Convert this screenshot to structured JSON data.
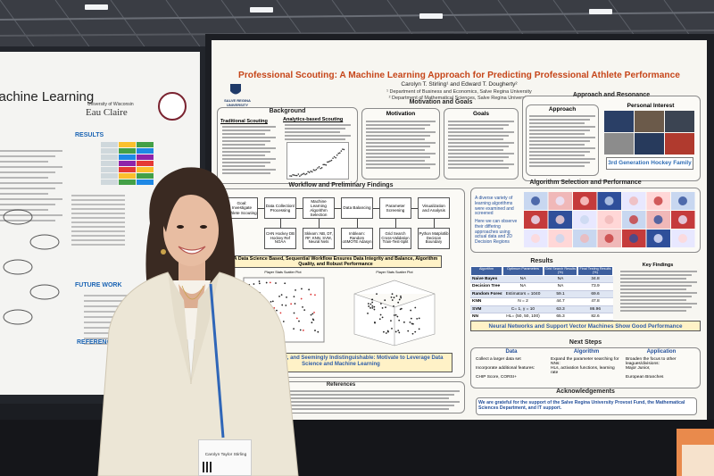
{
  "left_poster": {
    "title": "Machine Learning",
    "university": "University of Wisconsin",
    "campus": "Eau Claire",
    "results": "RESULTS",
    "future_work": "FUTURE WORK",
    "references": "REFERENCE"
  },
  "poster": {
    "title": "Professional Scouting: A Machine Learning Approach for Predicting Professional Athlete Performance",
    "authors": "Carolyn T. Stirling¹ and Edward T. Dougherty²",
    "affiliations": [
      "¹ Department of Business and Economics, Salve Regina University",
      "² Department of Mathematical Sciences, Salve Regina University"
    ],
    "logo": "SALVE REGINA UNIVERSITY",
    "background": {
      "heading": "Background",
      "traditional": "Traditional Scouting",
      "analytics": "Analytics-based Scouting"
    },
    "motivation_goals": {
      "heading": "Motivation and Goals",
      "motivation": "Motivation",
      "goals": "Goals"
    },
    "approach": {
      "heading": "Approach and Resonance",
      "approach": "Approach",
      "personal": "Personal Interest",
      "banner": "3rd Generation Hockey Family"
    },
    "workflow": {
      "heading": "Workflow and Preliminary Findings",
      "steps": [
        "Goal: Investigate Athlete Scouting",
        "Data Collection/ Processing",
        "Machine Learning Algorithm Selection",
        "Data Balancing",
        "Parameter Screening",
        "Visualization and Analysis"
      ],
      "methods": [
        "CHN Hockey DB Hockey Ref NOAA",
        "Sklearn: NB, DT, RF, KNN, SVM, Neural Nets",
        "Imblearn: Random oSMOTE Adasyn",
        "Grid Search Cross-Validation Train-Test-Split",
        "Python Matplotlib Decision Boundary"
      ],
      "statement": "A Data Science Based, Sequential Workflow Ensures Data Integrity and Balance, Algorithm Quality, and Robust Performance",
      "plot_titles": [
        "Player Stats Scatter Plot",
        "Player Stats Scatter Plot"
      ],
      "conclusion": "Messy, Imbalanced, and Seemingly Indistinguishable: Motivate to Leverage Data Science and Machine Learning"
    },
    "algorithm": {
      "heading": "Algorithm Selection and Performance",
      "points": [
        "A diverse variety of learning algorithms were examined and screened",
        "Here we can observe their differing approaches using actual data and 2D Decision Regions"
      ]
    },
    "results": {
      "heading": "Results",
      "columns": [
        "Algorithm",
        "Optimum Parameters",
        "Grid Search Results (%)",
        "Final Testing Results (%)"
      ],
      "rows": [
        [
          "Naive Bayes",
          "NA",
          "NA",
          34.8
        ],
        [
          "Decision Tree",
          "NA",
          "NA",
          73.9
        ],
        [
          "Random Forest",
          "Estimators = 1040",
          59.1,
          69.6
        ],
        [
          "KNN",
          "N = 2",
          44.7,
          47.8
        ],
        [
          "SVM",
          "C= 1, γ = 10",
          63.3,
          86.96
        ],
        [
          "NN",
          "HL= (50, 50, 100)",
          65.3,
          82.6
        ]
      ],
      "key_findings": "Key Findings",
      "banner": "Neural Networks and Support Vector Machines Show Good Performance"
    },
    "next_steps": {
      "heading": "Next Steps",
      "columns": [
        {
          "title": "Data",
          "items": [
            "Collect a larger data set",
            "Incorporate additional features:",
            "CHIP Score, CORSI+"
          ]
        },
        {
          "title": "Algorithm",
          "items": [
            "Expand the parameter searching for NNs:",
            "HLs, activation functions, learning rate"
          ]
        },
        {
          "title": "Application",
          "items": [
            "Broaden the focus to other leagues/divisions:",
            "Major Junior,",
            "European Branches"
          ]
        }
      ]
    },
    "acknowledgements": {
      "heading": "Acknowledgements",
      "text": "We are grateful for the support of the Salve Regina University Provost Fund, the Mathematical Sciences Department, and IT support."
    },
    "references": {
      "heading": "References"
    }
  },
  "badge": {
    "name": "Carolyn Taylor Stirling"
  }
}
